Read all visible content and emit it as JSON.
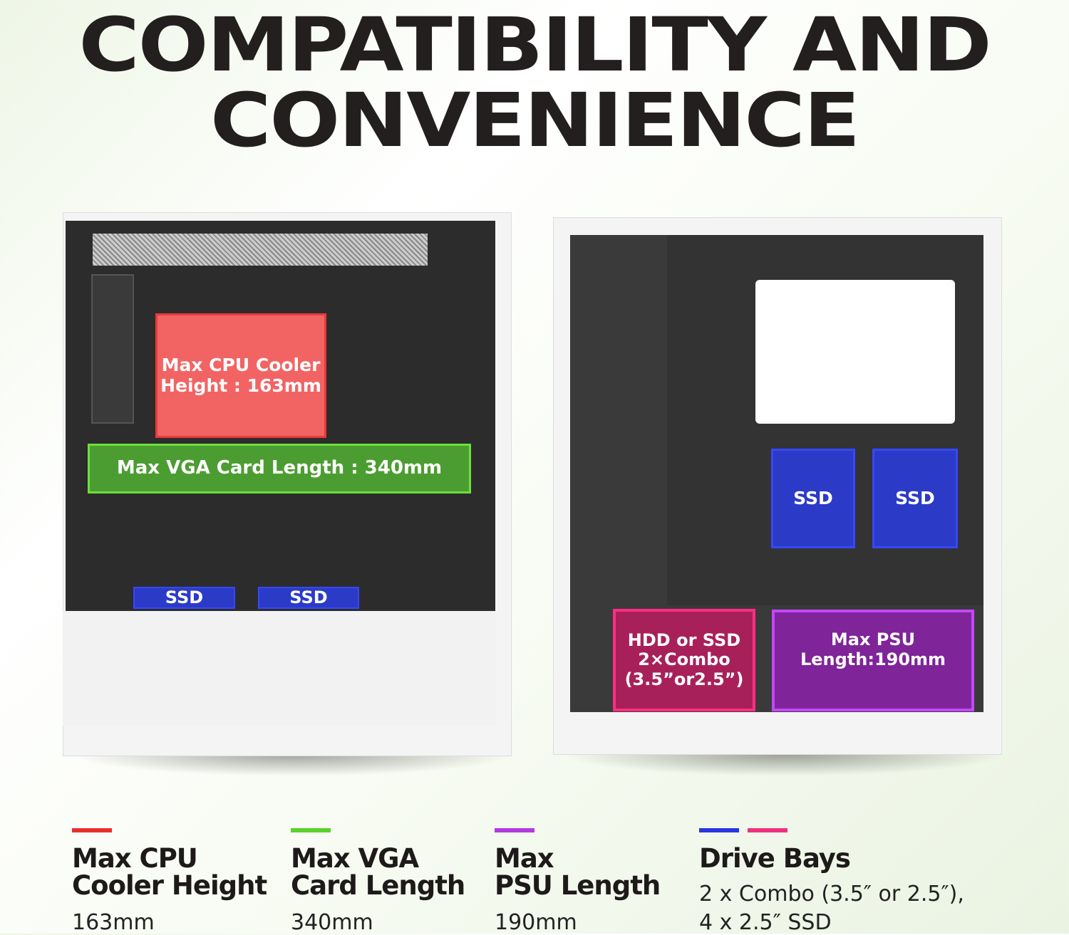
{
  "title": {
    "line1": "COMPATIBILITY AND",
    "line2": "CONVENIENCE"
  },
  "overlays": {
    "cpu": "Max CPU Cooler Height : 163mm",
    "vga": "Max VGA Card Length : 340mm",
    "ssd": "SSD",
    "hdd": "HDD or SSD 2×Combo (3.5”or2.5”)",
    "psu": "Max PSU Length:190mm"
  },
  "specs": [
    {
      "heading1": "Max CPU",
      "heading2": "Cooler Height",
      "value": "163mm",
      "color": "#e8302e"
    },
    {
      "heading1": "Max VGA",
      "heading2": "Card Length",
      "value": "340mm",
      "color": "#5ad22a"
    },
    {
      "heading1": "Max",
      "heading2": "PSU Length",
      "value": "190mm",
      "color": "#b03be0"
    },
    {
      "heading1": "Drive Bays",
      "value_line1": "2 x Combo (3.5″ or 2.5″),",
      "value_line2": "4 x 2.5″ SSD",
      "colors": [
        "#2a36e0",
        "#f0307f"
      ]
    }
  ]
}
